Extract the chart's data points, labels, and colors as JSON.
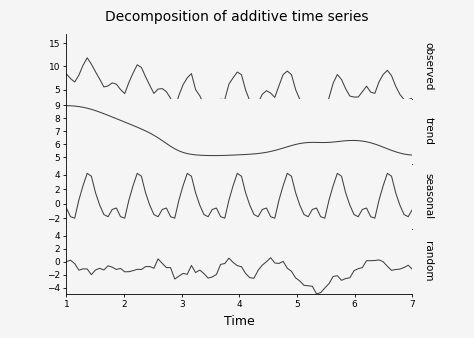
{
  "title": "Decomposition of additive time series",
  "xlabel": "Time",
  "panel_labels": [
    "observed",
    "trend",
    "seasonal",
    "random"
  ],
  "x_range": [
    1,
    7
  ],
  "x_ticks": [
    1,
    2,
    3,
    4,
    5,
    6,
    7
  ],
  "observed_ylim": [
    3,
    17
  ],
  "observed_yticks": [
    5,
    10,
    15
  ],
  "trend_ylim": [
    4.5,
    9.5
  ],
  "trend_yticks": [
    5,
    6,
    7,
    8,
    9
  ],
  "seasonal_ylim": [
    -3.5,
    5.5
  ],
  "seasonal_yticks": [
    -2,
    0,
    2,
    4
  ],
  "random_ylim": [
    -5,
    5
  ],
  "random_yticks": [
    -4,
    -2,
    0,
    2,
    4
  ],
  "line_color": "#404040",
  "bg_color": "#f5f5f5",
  "panel_bg": "#f5f5f5"
}
